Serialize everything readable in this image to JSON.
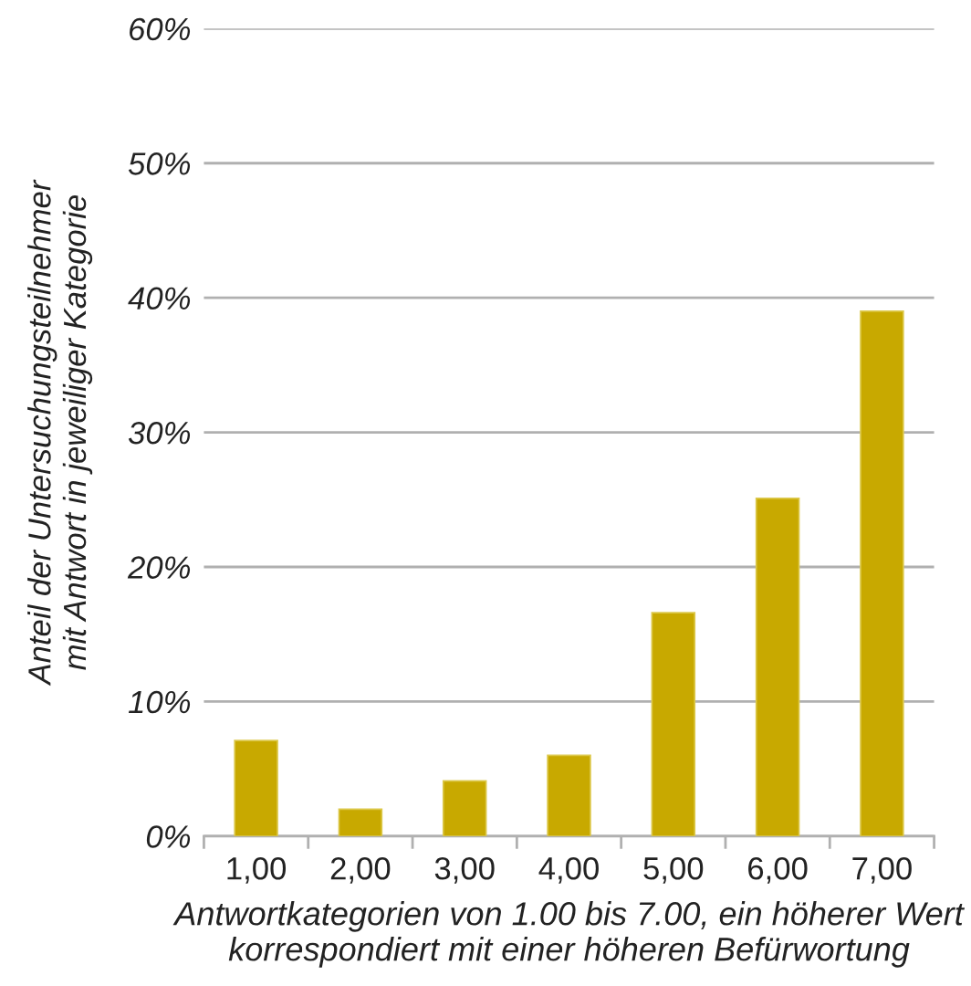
{
  "chart_data": {
    "type": "bar",
    "xlabel": "Antwortkategorien von 1.00 bis 7.00, ein höherer Wert\nkorrespondiert mit einer höheren Befürwortung",
    "ylabel": "Anteil der Untersuchungsteilnehmer\nmit Antwort in jeweiliger Kategorie",
    "categories": [
      "1,00",
      "2,00",
      "3,00",
      "4,00",
      "5,00",
      "6,00",
      "7,00"
    ],
    "values": [
      7.1,
      2.0,
      4.1,
      6.0,
      16.6,
      25.1,
      39.0
    ],
    "color": "#c8a900",
    "ylim": [
      0,
      60
    ],
    "yticks": [
      {
        "value": 0,
        "label": "0%"
      },
      {
        "value": 10,
        "label": "10%"
      },
      {
        "value": 20,
        "label": "20%"
      },
      {
        "value": 30,
        "label": "30%"
      },
      {
        "value": 40,
        "label": "40%"
      },
      {
        "value": 50,
        "label": "50%"
      },
      {
        "value": 60,
        "label": "60%"
      }
    ],
    "grid": "y"
  }
}
